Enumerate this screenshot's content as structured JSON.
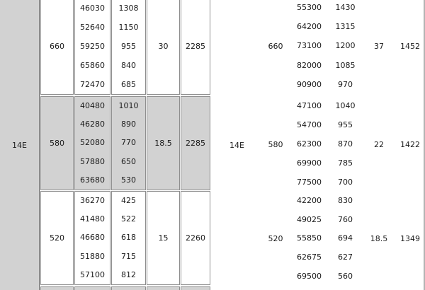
{
  "colors": {
    "shaded_band": "#d2d2d2",
    "cell_border": "#8f8f8f",
    "column_divider": "#6a6a6a",
    "text": "#1a1a1a",
    "right_edge_line": "#b3b3b3"
  },
  "left_table": {
    "row_label": "14E",
    "groups": [
      {
        "label": "660",
        "shaded": false,
        "col1": [
          "46030",
          "52640",
          "59250",
          "65860",
          "72470"
        ],
        "col2": [
          "1308",
          "1150",
          "955",
          "840",
          "685"
        ],
        "power": "30",
        "weight": "2285"
      },
      {
        "label": "580",
        "shaded": true,
        "col1": [
          "40480",
          "46280",
          "52080",
          "57880",
          "63680"
        ],
        "col2": [
          "1010",
          "890",
          "770",
          "650",
          "530"
        ],
        "power": "18.5",
        "weight": "2285"
      },
      {
        "label": "520",
        "shaded": false,
        "col1": [
          "36270",
          "41480",
          "46680",
          "51880",
          "57100"
        ],
        "col2": [
          "425",
          "522",
          "618",
          "715",
          "812"
        ],
        "power": "15",
        "weight": "2260"
      }
    ]
  },
  "right_table": {
    "row_label": "14E",
    "groups": [
      {
        "label": "660",
        "shaded": false,
        "col1": [
          "55300",
          "64200",
          "73100",
          "82000",
          "90900"
        ],
        "col2": [
          "1430",
          "1315",
          "1200",
          "1085",
          "970"
        ],
        "power": "37",
        "weight": "1452"
      },
      {
        "label": "580",
        "shaded": true,
        "col1": [
          "47100",
          "54700",
          "62300",
          "69900",
          "77500"
        ],
        "col2": [
          "1040",
          "955",
          "870",
          "785",
          "700"
        ],
        "power": "22",
        "weight": "1422"
      },
      {
        "label": "520",
        "shaded": false,
        "col1": [
          "42200",
          "49025",
          "55850",
          "62675",
          "69500"
        ],
        "col2": [
          "830",
          "760",
          "694",
          "627",
          "560"
        ],
        "power": "18.5",
        "weight": "1349"
      }
    ]
  }
}
